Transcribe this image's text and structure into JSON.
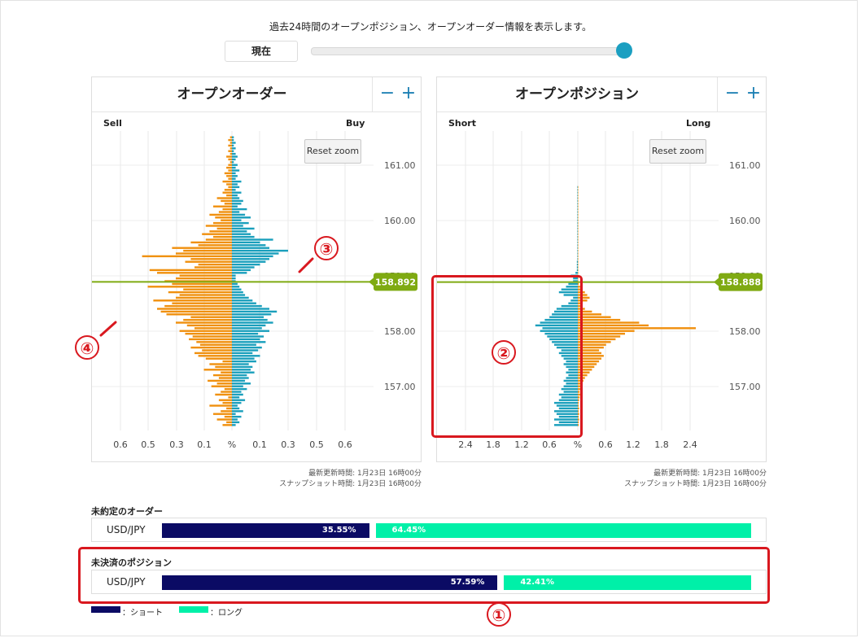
{
  "header": {
    "description": "過去24時間のオープンポジション、オープンオーダー情報を表示します。",
    "now_label": "現在"
  },
  "panels": [
    {
      "title": "オープンオーダー",
      "left_label": "Sell",
      "right_label": "Buy",
      "reset_label": "Reset zoom",
      "current_price": "158.892",
      "timestamps": {
        "updated": "最新更新時間: 1月23日 16時00分",
        "snapshot": "スナップショット時間: 1月23日 16時00分"
      }
    },
    {
      "title": "オープンポジション",
      "left_label": "Short",
      "right_label": "Long",
      "reset_label": "Reset zoom",
      "current_price": "158.888",
      "timestamps": {
        "updated": "最新更新時間: 1月23日 16時00分",
        "snapshot": "スナップショット時間: 1月23日 16時00分"
      }
    }
  ],
  "summary": {
    "orders": {
      "title": "未約定のオーダー",
      "pair": "USD/JPY",
      "short_pct": "35.55%",
      "long_pct": "64.45%",
      "short_value": 35.55
    },
    "positions": {
      "title": "未決済のポジション",
      "pair": "USD/JPY",
      "short_pct": "57.59%",
      "long_pct": "42.41%",
      "short_value": 57.59
    }
  },
  "legend": {
    "short": "：ショート",
    "long": "：ロング"
  },
  "annotations": [
    "①",
    "②",
    "③",
    "④"
  ],
  "colors": {
    "sell": "#f0900e",
    "buy": "#1a9fbc",
    "price_line": "#7faa12",
    "short": "#0b0b64",
    "long": "#00f0a8",
    "annotation": "#d9181f"
  },
  "chart_data": [
    {
      "type": "bar",
      "orientation": "horizontal-butterfly",
      "title": "オープンオーダー",
      "y_ticks": [
        "161.00",
        "160.00",
        "159.00",
        "158.00",
        "157.00"
      ],
      "x_ticks": [
        "0.6",
        "0.5",
        "0.3",
        "0.1",
        "%",
        "0.1",
        "0.3",
        "0.5",
        "0.6"
      ],
      "current_price": 158.892,
      "price_step": 0.05,
      "price_start": 156.3,
      "sell": [
        0.05,
        0.03,
        0.08,
        0.04,
        0.1,
        0.06,
        0.03,
        0.12,
        0.05,
        0.07,
        0.02,
        0.09,
        0.06,
        0.04,
        0.11,
        0.08,
        0.13,
        0.07,
        0.1,
        0.06,
        0.15,
        0.09,
        0.12,
        0.05,
        0.14,
        0.18,
        0.2,
        0.16,
        0.22,
        0.17,
        0.19,
        0.23,
        0.21,
        0.25,
        0.28,
        0.2,
        0.24,
        0.3,
        0.26,
        0.22,
        0.35,
        0.38,
        0.4,
        0.36,
        0.32,
        0.42,
        0.3,
        0.28,
        0.34,
        0.26,
        0.45,
        0.32,
        0.36,
        0.3,
        0.28,
        0.4,
        0.44,
        0.2,
        0.18,
        0.25,
        0.22,
        0.48,
        0.3,
        0.26,
        0.32,
        0.18,
        0.22,
        0.14,
        0.1,
        0.16,
        0.12,
        0.08,
        0.14,
        0.1,
        0.06,
        0.09,
        0.12,
        0.07,
        0.05,
        0.1,
        0.04,
        0.06,
        0.08,
        0.03,
        0.05,
        0.04,
        0.02,
        0.03,
        0.05,
        0.02,
        0.03,
        0.04,
        0.02,
        0.03,
        0.02,
        0.01,
        0.02,
        0.03,
        0.01,
        0.02,
        0.01,
        0.02,
        0.01,
        0.02,
        0.01,
        0.01
      ],
      "buy": [
        0.02,
        0.04,
        0.03,
        0.05,
        0.02,
        0.06,
        0.04,
        0.03,
        0.05,
        0.07,
        0.04,
        0.06,
        0.05,
        0.08,
        0.06,
        0.1,
        0.07,
        0.09,
        0.08,
        0.12,
        0.1,
        0.11,
        0.09,
        0.13,
        0.12,
        0.15,
        0.11,
        0.14,
        0.16,
        0.13,
        0.18,
        0.15,
        0.17,
        0.14,
        0.2,
        0.16,
        0.18,
        0.22,
        0.19,
        0.17,
        0.21,
        0.24,
        0.2,
        0.16,
        0.13,
        0.11,
        0.09,
        0.07,
        0.06,
        0.05,
        0.04,
        0.03,
        0.02,
        0.02,
        0.02,
        0.08,
        0.1,
        0.12,
        0.15,
        0.18,
        0.2,
        0.22,
        0.25,
        0.3,
        0.2,
        0.18,
        0.15,
        0.22,
        0.12,
        0.1,
        0.08,
        0.12,
        0.06,
        0.09,
        0.05,
        0.1,
        0.07,
        0.04,
        0.08,
        0.03,
        0.05,
        0.06,
        0.04,
        0.03,
        0.05,
        0.02,
        0.04,
        0.03,
        0.05,
        0.02,
        0.03,
        0.02,
        0.04,
        0.02,
        0.03,
        0.01,
        0.02,
        0.03,
        0.02,
        0.01,
        0.02,
        0.01,
        0.02,
        0.01,
        0.01,
        0.01
      ]
    },
    {
      "type": "bar",
      "orientation": "horizontal-butterfly",
      "title": "オープンポジション",
      "y_ticks": [
        "161.00",
        "160.00",
        "159.00",
        "158.00",
        "157.00"
      ],
      "x_ticks": [
        "2.4",
        "1.8",
        "1.2",
        "0.6",
        "%",
        "0.6",
        "1.2",
        "1.8",
        "2.4"
      ],
      "current_price": 158.888,
      "price_step": 0.05,
      "price_start": 156.3,
      "short": [
        0.5,
        0.4,
        0.5,
        0.4,
        0.45,
        0.5,
        0.4,
        0.45,
        0.5,
        0.4,
        0.35,
        0.4,
        0.3,
        0.35,
        0.3,
        0.25,
        0.3,
        0.25,
        0.2,
        0.25,
        0.2,
        0.25,
        0.3,
        0.25,
        0.3,
        0.35,
        0.4,
        0.35,
        0.45,
        0.5,
        0.55,
        0.6,
        0.65,
        0.7,
        0.8,
        0.75,
        0.9,
        0.8,
        0.7,
        0.6,
        0.55,
        0.5,
        0.45,
        0.35,
        0.2,
        0.15,
        0.1,
        0.3,
        0.4,
        0.35,
        0.25,
        0.2,
        0.1,
        0.1,
        0.15,
        0.05,
        0.02,
        0.02,
        0.02,
        0.02,
        0.01,
        0.01,
        0.01,
        0.01,
        0.01,
        0.01,
        0.01,
        0.01,
        0.01,
        0.01,
        0.01,
        0.01,
        0.01,
        0.01,
        0.01,
        0.01,
        0.01,
        0.01,
        0.01,
        0.01,
        0.01,
        0.01,
        0.01,
        0.01,
        0.01,
        0.01,
        0.01
      ],
      "long": [
        0.02,
        0.02,
        0.03,
        0.02,
        0.03,
        0.02,
        0.03,
        0.02,
        0.02,
        0.03,
        0.04,
        0.05,
        0.04,
        0.06,
        0.08,
        0.1,
        0.12,
        0.15,
        0.2,
        0.25,
        0.3,
        0.35,
        0.4,
        0.45,
        0.5,
        0.55,
        0.5,
        0.45,
        0.55,
        0.6,
        0.7,
        0.8,
        0.9,
        1.0,
        1.2,
        2.5,
        1.5,
        1.3,
        0.9,
        0.7,
        0.5,
        0.3,
        0.15,
        0.1,
        0.1,
        0.2,
        0.25,
        0.2,
        0.15,
        0.1,
        0.05,
        0.02,
        0.01,
        0.01,
        0.01,
        0.01,
        0.01,
        0.01,
        0.01,
        0.01,
        0.01,
        0.01,
        0.01,
        0.01,
        0.01,
        0.01,
        0.01,
        0.01,
        0.01,
        0.01,
        0.01,
        0.01,
        0.01,
        0.01,
        0.01,
        0.01,
        0.01,
        0.01,
        0.01,
        0.01,
        0.01,
        0.01,
        0.01,
        0.01,
        0.01,
        0.01,
        0.01
      ]
    }
  ]
}
